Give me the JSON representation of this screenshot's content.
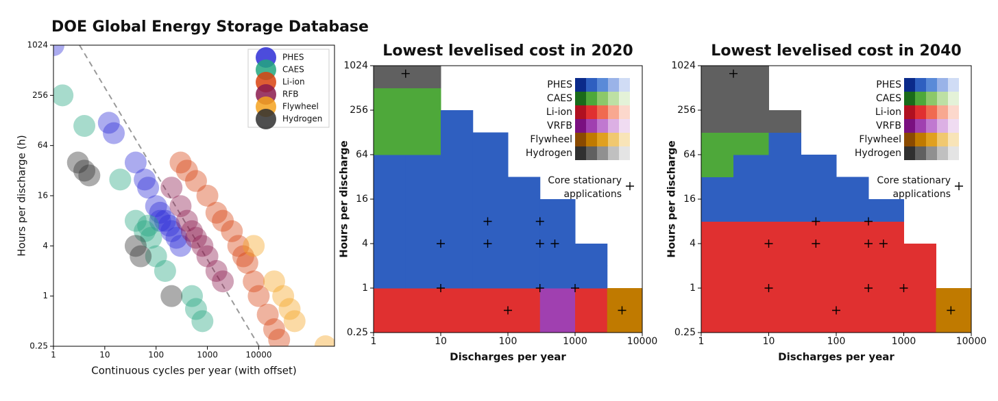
{
  "chart_data": [
    {
      "type": "scatter",
      "title": "DOE Global Energy Storage Database",
      "xlabel": "Continuous cycles per year (with offset)",
      "ylabel": "Hours per discharge (h)",
      "log_x": true,
      "log_y": true,
      "xlim": [
        1,
        300000
      ],
      "ylim": [
        0.25,
        1024
      ],
      "xticks": [
        1,
        10,
        100,
        1000,
        10000
      ],
      "yticks": [
        0.25,
        1,
        4,
        16,
        64,
        256,
        1024
      ],
      "legend": "upper right",
      "series": [
        {
          "name": "PHES",
          "color": "#2d2dd6",
          "x": [
            1,
            12,
            15,
            40,
            60,
            70,
            100,
            120,
            150,
            200,
            250,
            300,
            120,
            180
          ],
          "y": [
            1024,
            120,
            90,
            40,
            25,
            20,
            12,
            10,
            8,
            6,
            5,
            4,
            8,
            7
          ]
        },
        {
          "name": "CAES",
          "color": "#22a67f",
          "x": [
            1.5,
            4,
            20,
            40,
            60,
            80,
            100,
            150,
            500,
            600,
            800,
            70
          ],
          "y": [
            256,
            110,
            25,
            8,
            6,
            5,
            3,
            2,
            1,
            0.7,
            0.5,
            7
          ]
        },
        {
          "name": "Li-ion",
          "color": "#d8420f",
          "x": [
            300,
            400,
            600,
            1000,
            1500,
            2000,
            3000,
            4000,
            5000,
            6000,
            8000,
            10000,
            15000,
            20000,
            25000
          ],
          "y": [
            40,
            32,
            24,
            16,
            10,
            8,
            6,
            4,
            3,
            2.5,
            1.5,
            1,
            0.6,
            0.4,
            0.3
          ]
        },
        {
          "name": "RFB",
          "color": "#8b1a4e",
          "x": [
            200,
            300,
            400,
            500,
            600,
            800,
            1000,
            1500,
            2000
          ],
          "y": [
            20,
            12,
            8,
            6,
            5,
            4,
            3,
            2,
            1.5
          ]
        },
        {
          "name": "Flywheel",
          "color": "#f5a21e",
          "x": [
            8000,
            20000,
            30000,
            40000,
            50000,
            200000
          ],
          "y": [
            4,
            1.5,
            1,
            0.7,
            0.5,
            0.25
          ]
        },
        {
          "name": "Hydrogen",
          "color": "#2f2f2f",
          "x": [
            3,
            4,
            5,
            40,
            50,
            200
          ],
          "y": [
            40,
            32,
            28,
            4,
            3,
            1
          ]
        }
      ]
    },
    {
      "type": "contour",
      "title": "Lowest levelised cost in 2020",
      "xlabel": "Discharges per year",
      "ylabel": "Hours per discharge",
      "log_x": true,
      "log_y": true,
      "xlim": [
        1,
        10000
      ],
      "ylim": [
        0.25,
        1024
      ],
      "xticks": [
        1,
        10,
        100,
        1000,
        10000
      ],
      "yticks": [
        0.25,
        1,
        4,
        16,
        64,
        256,
        1024
      ],
      "xbins": [
        1,
        3,
        10,
        30,
        100,
        300,
        1000,
        3000,
        10000
      ],
      "ybins": [
        0.25,
        0.5,
        1,
        2,
        4,
        8,
        16,
        32,
        64,
        128,
        256,
        512,
        1024
      ],
      "grid": [
        [
          2,
          2,
          2,
          2,
          2,
          3,
          2,
          4
        ],
        [
          2,
          2,
          2,
          2,
          2,
          3,
          2,
          4
        ],
        [
          0,
          0,
          0,
          0,
          0,
          0,
          0,
          null
        ],
        [
          0,
          0,
          0,
          0,
          0,
          0,
          0,
          null
        ],
        [
          0,
          0,
          0,
          0,
          0,
          0,
          null,
          null
        ],
        [
          0,
          0,
          0,
          0,
          0,
          0,
          null,
          null
        ],
        [
          0,
          0,
          0,
          0,
          0,
          null,
          null,
          null
        ],
        [
          0,
          0,
          0,
          0,
          null,
          null,
          null,
          null
        ],
        [
          1,
          1,
          0,
          0,
          null,
          null,
          null,
          null
        ],
        [
          1,
          1,
          0,
          null,
          null,
          null,
          null,
          null
        ],
        [
          1,
          1,
          null,
          null,
          null,
          null,
          null,
          null
        ],
        [
          5,
          5,
          null,
          null,
          null,
          null,
          null,
          null
        ]
      ],
      "legend": [
        {
          "name": "PHES",
          "colors": [
            "#0b2a8a",
            "#2f5fc0",
            "#5a8ad8",
            "#9ab3e8",
            "#d0dcf5"
          ]
        },
        {
          "name": "CAES",
          "colors": [
            "#1a6a1a",
            "#4ea83a",
            "#8cc86a",
            "#bde0a4",
            "#e4f2d8"
          ]
        },
        {
          "name": "Li-ion",
          "colors": [
            "#b01020",
            "#e03030",
            "#f06a50",
            "#f8a890",
            "#fcd8cc"
          ]
        },
        {
          "name": "VRFB",
          "colors": [
            "#7a1080",
            "#a040b0",
            "#c078d0",
            "#dcb0e4",
            "#f0dcf2"
          ]
        },
        {
          "name": "Flywheel",
          "colors": [
            "#8a4a00",
            "#c07a00",
            "#e0a020",
            "#f0c870",
            "#f8e4b8"
          ]
        },
        {
          "name": "Hydrogen",
          "colors": [
            "#303030",
            "#606060",
            "#909090",
            "#c0c0c0",
            "#e4e4e4"
          ]
        }
      ],
      "annotation": [
        "Core stationary",
        "applications"
      ],
      "points": {
        "x": [
          3,
          10,
          50,
          50,
          300,
          300,
          500,
          10,
          300,
          1000,
          100,
          5000
        ],
        "y": [
          800,
          4,
          8,
          4,
          8,
          4,
          4,
          1,
          1,
          1,
          0.5,
          0.5
        ]
      }
    },
    {
      "type": "contour",
      "title": "Lowest levelised cost in 2040",
      "xlabel": "Discharges per year",
      "ylabel": "Hours per discharge",
      "log_x": true,
      "log_y": true,
      "xlim": [
        1,
        10000
      ],
      "ylim": [
        0.25,
        1024
      ],
      "xticks": [
        1,
        10,
        100,
        1000,
        10000
      ],
      "yticks": [
        0.25,
        1,
        4,
        16,
        64,
        256,
        1024
      ],
      "xbins": [
        1,
        3,
        10,
        30,
        100,
        300,
        1000,
        3000,
        10000
      ],
      "ybins": [
        0.25,
        0.5,
        1,
        2,
        4,
        8,
        16,
        32,
        64,
        128,
        256,
        512,
        1024
      ],
      "grid": [
        [
          2,
          2,
          2,
          2,
          2,
          2,
          2,
          4
        ],
        [
          2,
          2,
          2,
          2,
          2,
          2,
          2,
          4
        ],
        [
          2,
          2,
          2,
          2,
          2,
          2,
          2,
          null
        ],
        [
          2,
          2,
          2,
          2,
          2,
          2,
          2,
          null
        ],
        [
          2,
          2,
          2,
          2,
          2,
          2,
          null,
          null
        ],
        [
          0,
          0,
          0,
          0,
          0,
          0,
          null,
          null
        ],
        [
          0,
          0,
          0,
          0,
          0,
          null,
          null,
          null
        ],
        [
          1,
          0,
          0,
          0,
          null,
          null,
          null,
          null
        ],
        [
          1,
          1,
          0,
          null,
          null,
          null,
          null,
          null
        ],
        [
          5,
          5,
          5,
          null,
          null,
          null,
          null,
          null
        ],
        [
          5,
          5,
          null,
          null,
          null,
          null,
          null,
          null
        ],
        [
          5,
          5,
          null,
          null,
          null,
          null,
          null,
          null
        ]
      ],
      "legend": [
        {
          "name": "PHES",
          "colors": [
            "#0b2a8a",
            "#2f5fc0",
            "#5a8ad8",
            "#9ab3e8",
            "#d0dcf5"
          ]
        },
        {
          "name": "CAES",
          "colors": [
            "#1a6a1a",
            "#4ea83a",
            "#8cc86a",
            "#bde0a4",
            "#e4f2d8"
          ]
        },
        {
          "name": "Li-ion",
          "colors": [
            "#b01020",
            "#e03030",
            "#f06a50",
            "#f8a890",
            "#fcd8cc"
          ]
        },
        {
          "name": "VRFB",
          "colors": [
            "#7a1080",
            "#a040b0",
            "#c078d0",
            "#dcb0e4",
            "#f0dcf2"
          ]
        },
        {
          "name": "Flywheel",
          "colors": [
            "#8a4a00",
            "#c07a00",
            "#e0a020",
            "#f0c870",
            "#f8e4b8"
          ]
        },
        {
          "name": "Hydrogen",
          "colors": [
            "#303030",
            "#606060",
            "#909090",
            "#c0c0c0",
            "#e4e4e4"
          ]
        }
      ],
      "annotation": [
        "Core stationary",
        "applications"
      ],
      "points": {
        "x": [
          3,
          10,
          50,
          50,
          300,
          300,
          500,
          10,
          300,
          1000,
          100,
          5000
        ],
        "y": [
          800,
          4,
          8,
          4,
          8,
          4,
          4,
          1,
          1,
          1,
          0.5,
          0.5
        ]
      }
    }
  ]
}
